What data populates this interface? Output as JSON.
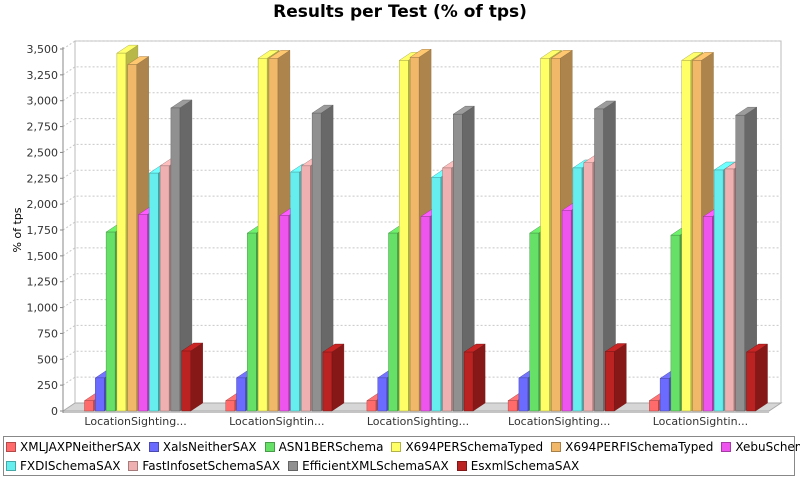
{
  "chart_data": {
    "type": "bar",
    "title": "Results per Test (% of tps)",
    "xlabel": "",
    "ylabel": "% of tps",
    "ylim": [
      0,
      3500
    ],
    "yticks": [
      0,
      250,
      500,
      750,
      1000,
      1250,
      1500,
      1750,
      2000,
      2250,
      2500,
      2750,
      3000,
      3250,
      3500
    ],
    "ytick_labels": [
      "0",
      "250",
      "500",
      "750",
      "1,000",
      "1,250",
      "1,500",
      "1,750",
      "2,000",
      "2,250",
      "2,500",
      "2,750",
      "3,000",
      "3,250",
      "3,500"
    ],
    "categories": [
      "LocationSighting...",
      "LocationSightin...",
      "LocationSighting...",
      "LocationSighting...",
      "LocationSightin..."
    ],
    "grid": true,
    "legend_position": "bottom",
    "three_d": true,
    "series": [
      {
        "name": "XMLJAXPNeitherSAX",
        "color": "#ff6b6b",
        "values": [
          100,
          100,
          100,
          100,
          100
        ]
      },
      {
        "name": "XalsNeitherSAX",
        "color": "#6b6bff",
        "values": [
          320,
          320,
          320,
          320,
          315
        ]
      },
      {
        "name": "ASN1BERSchema",
        "color": "#66e066",
        "values": [
          1730,
          1720,
          1720,
          1720,
          1700
        ]
      },
      {
        "name": "X694PERSchemaTyped",
        "color": "#ffff66",
        "values": [
          3460,
          3410,
          3390,
          3410,
          3390
        ]
      },
      {
        "name": "X694PERFISchemaTyped",
        "color": "#f0b868",
        "values": [
          3350,
          3410,
          3420,
          3410,
          3390
        ]
      },
      {
        "name": "XebuSchemaSAX",
        "color": "#ee55ee",
        "values": [
          1900,
          1890,
          1880,
          1940,
          1880
        ]
      },
      {
        "name": "FXDISchemaSAX",
        "color": "#66eeee",
        "values": [
          2300,
          2310,
          2260,
          2350,
          2330
        ]
      },
      {
        "name": "FastInfosetSchemaSAX",
        "color": "#eeb0b0",
        "values": [
          2370,
          2370,
          2350,
          2400,
          2340
        ]
      },
      {
        "name": "EfficientXMLSchemaSAX",
        "color": "#909090",
        "values": [
          2930,
          2880,
          2870,
          2920,
          2860
        ]
      },
      {
        "name": "EsxmlSchemaSAX",
        "color": "#bb2222",
        "values": [
          580,
          570,
          570,
          575,
          570
        ]
      }
    ]
  }
}
